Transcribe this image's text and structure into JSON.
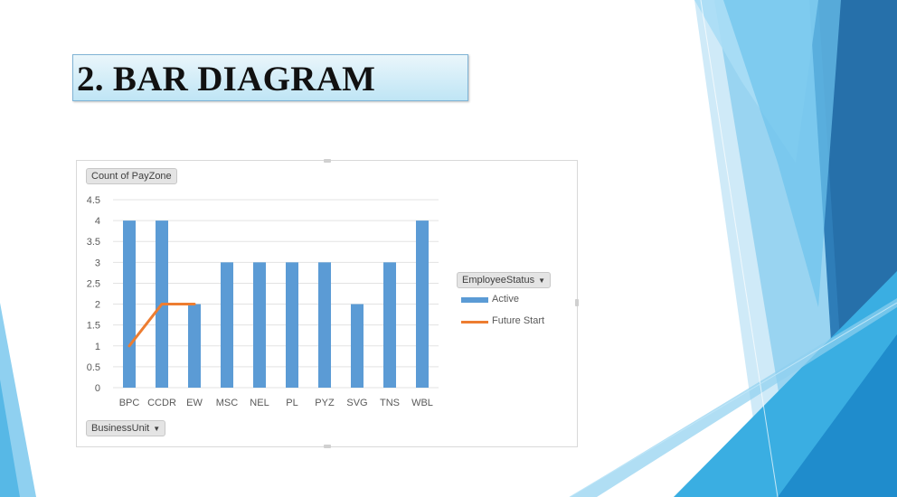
{
  "slide": {
    "title": "2. BAR DIAGRAM"
  },
  "pivot": {
    "value_field": "Count of PayZone",
    "legend_field": "EmployeeStatus",
    "axis_field": "BusinessUnit"
  },
  "legend": {
    "items": [
      "Active",
      "Future Start"
    ]
  },
  "icons": {
    "filter_dropdown": "dropdown-arrow-icon"
  },
  "colors": {
    "active": "#5b9bd5",
    "future_start": "#ed7d31",
    "decor_light": "#cfeaf8",
    "decor_mid": "#57b8e6",
    "decor_dark": "#2e7db8"
  },
  "chart_data": {
    "type": "bar",
    "categories": [
      "BPC",
      "CCDR",
      "EW",
      "MSC",
      "NEL",
      "PL",
      "PYZ",
      "SVG",
      "TNS",
      "WBL"
    ],
    "series": [
      {
        "name": "Active",
        "type": "bar",
        "values": [
          4,
          4,
          2,
          3,
          3,
          3,
          3,
          2,
          3,
          4
        ]
      },
      {
        "name": "Future Start",
        "type": "line",
        "values": [
          1,
          2,
          2,
          null,
          null,
          null,
          null,
          null,
          null,
          null
        ]
      }
    ],
    "ylim": [
      0,
      4.5
    ],
    "yticks": [
      "0",
      "0.5",
      "1",
      "1.5",
      "2",
      "2.5",
      "3",
      "3.5",
      "4",
      "4.5"
    ],
    "grid": true,
    "legend_position": "right"
  }
}
